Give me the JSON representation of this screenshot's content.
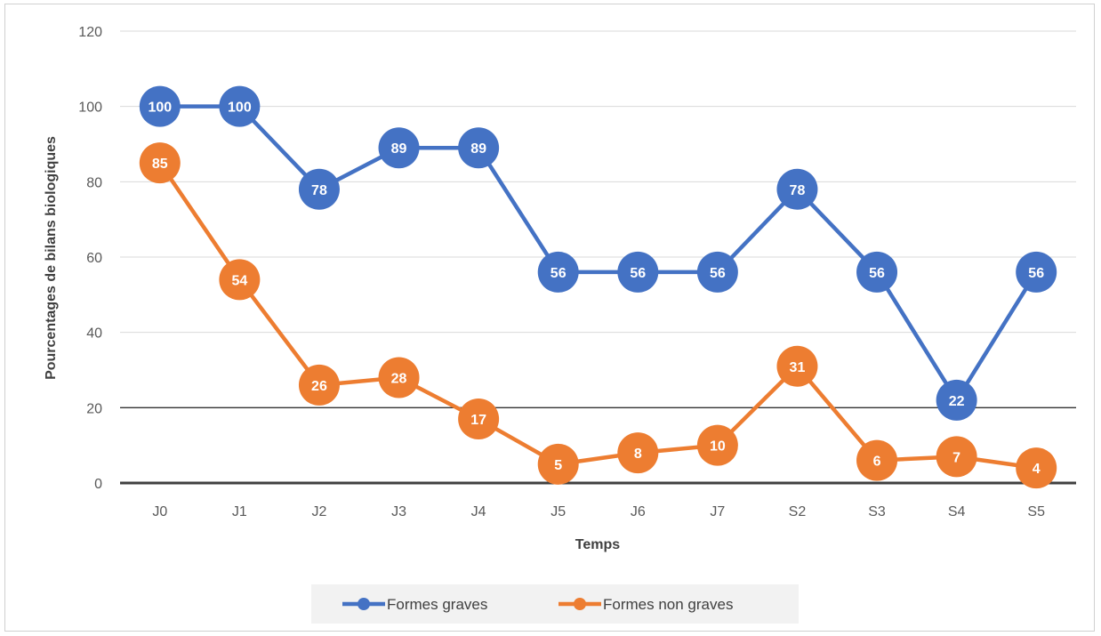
{
  "chart_data": {
    "type": "line",
    "xlabel": "Temps",
    "ylabel": "Pourcentages de bilans biologiques",
    "categories": [
      "J0",
      "J1",
      "J2",
      "J3",
      "J4",
      "J5",
      "J6",
      "J7",
      "S2",
      "S3",
      "S4",
      "S5"
    ],
    "ylim": [
      0,
      120
    ],
    "yticks": [
      0,
      20,
      40,
      60,
      80,
      100,
      120
    ],
    "grid": true,
    "legend_position": "bottom",
    "series": [
      {
        "name": "Formes graves",
        "color": "#4472C4",
        "values": [
          100,
          100,
          78,
          89,
          89,
          56,
          56,
          56,
          78,
          56,
          22,
          56
        ]
      },
      {
        "name": "Formes non graves",
        "color": "#ED7D31",
        "values": [
          85,
          54,
          26,
          28,
          17,
          5,
          8,
          10,
          31,
          6,
          7,
          4
        ]
      }
    ]
  }
}
